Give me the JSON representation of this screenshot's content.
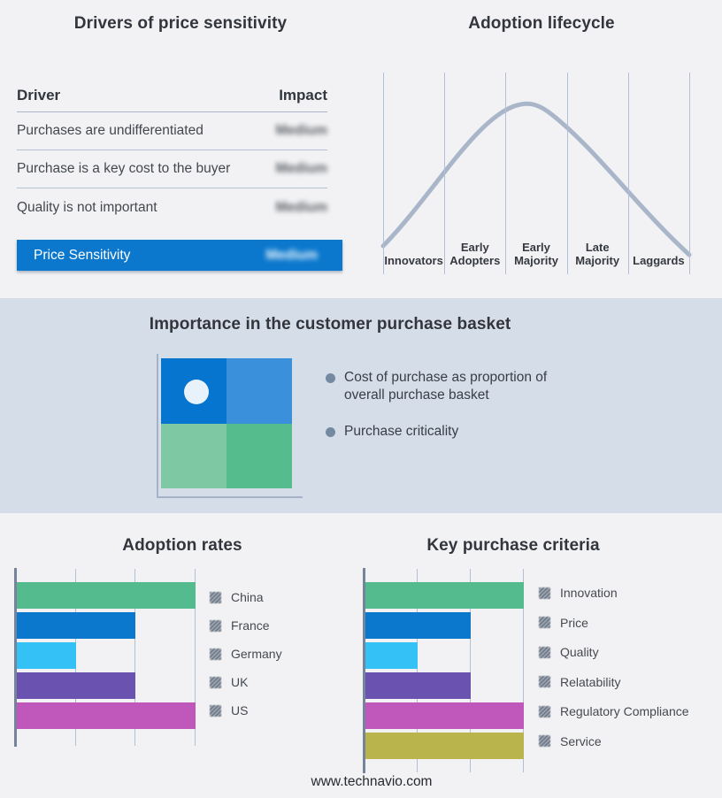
{
  "page": {
    "footer": "www.technavio.com",
    "background": "#f2f2f4",
    "band_background": "#d5dde9"
  },
  "drivers": {
    "title": "Drivers of price sensitivity",
    "columns": [
      "Driver",
      "Impact"
    ],
    "rows": [
      {
        "driver": "Purchases are undifferentiated",
        "impact": "Medium"
      },
      {
        "driver": "Purchase is a key cost to the buyer",
        "impact": "Medium"
      },
      {
        "driver": "Quality is not important",
        "impact": "Medium"
      }
    ],
    "highlight": {
      "driver": "Price Sensitivity",
      "impact": "Medium",
      "color": "#0b78cd"
    }
  },
  "lifecycle": {
    "title": "Adoption lifecycle",
    "stages": [
      "Innovators",
      "Early Adopters",
      "Early Majority",
      "Late Majority",
      "Laggards"
    ],
    "curve_color": "#a9b6ca"
  },
  "basket": {
    "title": "Importance in the customer purchase basket",
    "bullets": [
      "Cost of purchase as proportion of overall purchase basket",
      "Purchase criticality"
    ],
    "quadrant_colors": [
      "#0575d0",
      "#3a90da",
      "#7fc8a4",
      "#55bd8d"
    ],
    "dot_color": "#e8f2fa"
  },
  "chart_data": [
    {
      "type": "line",
      "title": "Adoption lifecycle",
      "categories": [
        "Innovators",
        "Early Adopters",
        "Early Majority",
        "Late Majority",
        "Laggards"
      ],
      "description": "Bell-shaped adoption curve rising through Innovators and Early Adopters, peaking at Early Majority, declining through Late Majority and Laggards",
      "grid": true,
      "line_color": "#a9b6ca"
    },
    {
      "type": "bar",
      "title": "Adoption rates",
      "orientation": "horizontal",
      "categories": [
        "China",
        "France",
        "Germany",
        "UK",
        "US"
      ],
      "values": [
        3,
        2,
        1,
        2,
        3
      ],
      "xlim": [
        0,
        3
      ],
      "colors": [
        "#53bb8d",
        "#0b78cd",
        "#33c1f6",
        "#6952b0",
        "#bf58ba"
      ],
      "grid": true,
      "legend_position": "right",
      "xlabel": "",
      "ylabel": ""
    },
    {
      "type": "bar",
      "title": "Key purchase criteria",
      "orientation": "horizontal",
      "categories": [
        "Innovation",
        "Price",
        "Quality",
        "Relatability",
        "Regulatory Compliance",
        "Service"
      ],
      "values": [
        3,
        2,
        1,
        2,
        3,
        3
      ],
      "xlim": [
        0,
        3
      ],
      "colors": [
        "#53bb8d",
        "#0b78cd",
        "#33c1f6",
        "#6952b0",
        "#bf58ba",
        "#b9b54c"
      ],
      "grid": true,
      "legend_position": "right",
      "xlabel": "",
      "ylabel": ""
    }
  ]
}
